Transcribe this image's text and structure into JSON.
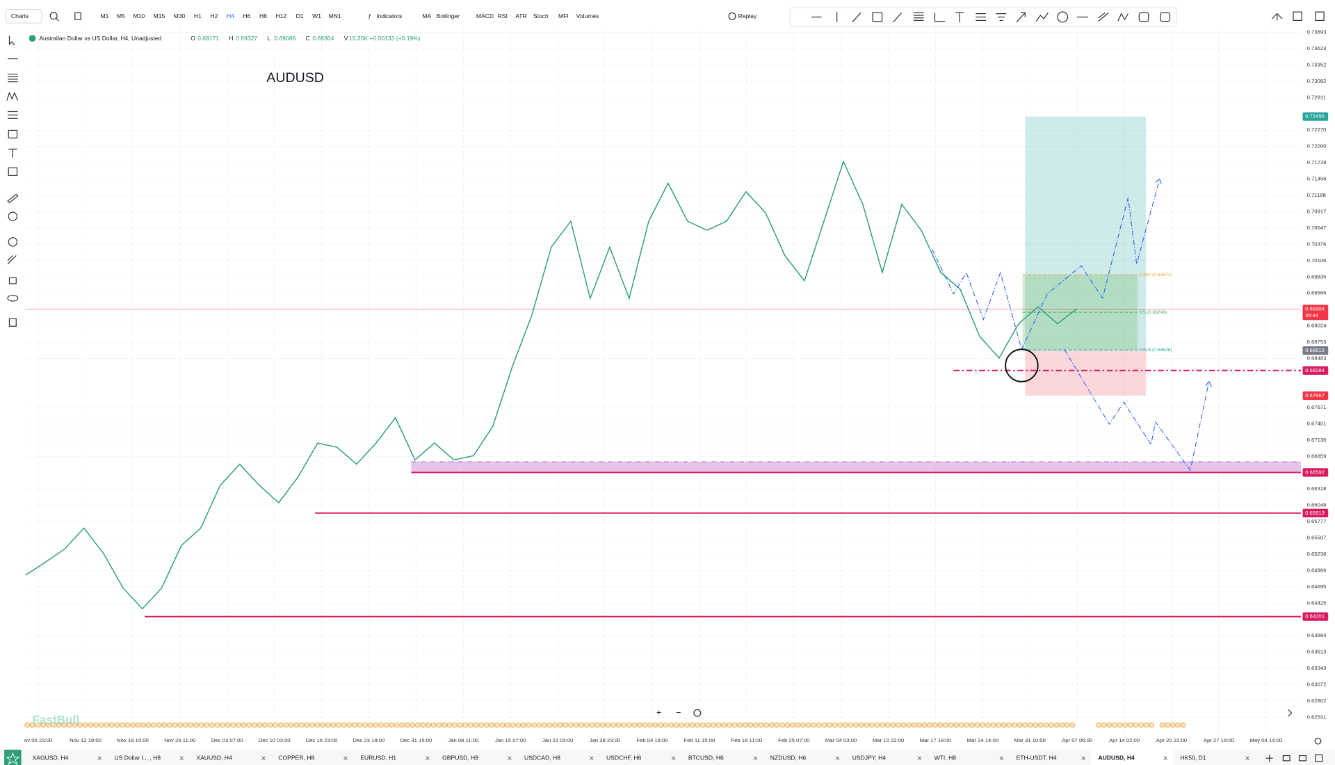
{
  "toolbar": {
    "menu": "Charts",
    "timeframes": [
      "M1",
      "M5",
      "M10",
      "M15",
      "M30",
      "H1",
      "H2",
      "H4",
      "H6",
      "H8",
      "H12",
      "D1",
      "W1",
      "MN1"
    ],
    "active_timeframe": 7,
    "indicators_label": "Indicators",
    "indicators": [
      "MA",
      "Bollinger",
      "MACD",
      "RSI",
      "ATR",
      "Stoch",
      "MFI",
      "Volumes"
    ],
    "replay": "Replay"
  },
  "chart_data": {
    "type": "line",
    "title": "Australian Dollar vs US Dollar, H4, Unadjusted",
    "watermark": "AUDUSD",
    "brand": "FastBull",
    "ohlc": [
      {
        "label": "O",
        "value": 0.69171
      },
      {
        "label": "H",
        "value": 0.69327
      },
      {
        "label": "L",
        "value": 0.69086
      },
      {
        "label": "C",
        "value": 0.69304
      }
    ],
    "volume": {
      "label": "V",
      "value": "15.25K"
    },
    "change": "+0.00133 (+0.19%)",
    "series": [
      {
        "name": "AUDUSD",
        "color": "#2e9e7a",
        "values": [
          0.6489,
          0.651,
          0.6532,
          0.6567,
          0.6525,
          0.6468,
          0.6433,
          0.6468,
          0.6538,
          0.6567,
          0.6638,
          0.6673,
          0.6638,
          0.6609,
          0.6652,
          0.6708,
          0.6701,
          0.6673,
          0.6708,
          0.675,
          0.668,
          0.6708,
          0.668,
          0.6687,
          0.6736,
          0.6835,
          0.692,
          0.7033,
          0.7076,
          0.6948,
          0.7033,
          0.6948,
          0.7076,
          0.7139,
          0.7076,
          0.7061,
          0.7076,
          0.7125,
          0.709,
          0.7019,
          0.6977,
          0.7076,
          0.7175,
          0.7104,
          0.6991,
          0.7104,
          0.7061,
          0.6991,
          0.6963,
          0.6885,
          0.6849,
          0.6906,
          0.6934,
          0.6906,
          0.6931
        ]
      }
    ],
    "ylim": [
      0.6225,
      0.74
    ],
    "yticks": [
      0.73893,
      0.73623,
      0.73352,
      0.73082,
      0.72811,
      {
        "value": 0.7227,
        "label": "0.72270"
      },
      {
        "value": 0.72,
        "label": "0.72000"
      },
      0.71729,
      0.71458,
      0.71188,
      0.70917,
      0.70647,
      0.70376,
      0.70106,
      0.69835,
      0.69565,
      0.69024,
      0.68753,
      0.68483,
      0.67671,
      0.67401,
      {
        "value": 0.6713,
        "label": "0.67130"
      },
      0.66859,
      0.66318,
      0.66048,
      0.65777,
      0.65507,
      0.65236,
      0.64966,
      0.64695,
      0.64425,
      0.63884,
      0.63613,
      0.63343,
      0.63072,
      0.62802,
      0.62531
    ],
    "time_axis_labels": [
      "ov 05 23:00",
      "Nov 12 19:00",
      "Nov 19 15:00",
      "Nov 26 11:00",
      "Dec 03 07:00",
      "Dec 10 03:00",
      "Dec 16 23:00",
      "Dec 23 19:00",
      "Dec 31 15:00",
      "Jan 08 11:00",
      "Jan 15 07:00",
      "Jan 22 03:00",
      "Jan 28 23:00",
      "Feb 04 19:00",
      "Feb 11 15:00",
      "Feb 18 11:00",
      "Feb 25 07:00",
      "Mar 04 03:00",
      "Mar 10 22:00",
      "Mar 17 18:00",
      "Mar 24 14:00",
      "Mar 31 10:00",
      "Apr 07 06:00",
      "Apr 14 02:00",
      "Apr 20 22:00",
      "Apr 27 18:00",
      "May 04 14:00"
    ],
    "grid": true,
    "current_price": {
      "value": 0.69304,
      "countdown": "39:44",
      "color": "#f23645"
    },
    "levels": [
      {
        "value": 0.68284,
        "color": "#d81b60",
        "style": "dashdot"
      },
      {
        "value": 0.66592,
        "color": "#d81b60",
        "style": "solid"
      },
      {
        "value": 0.65919,
        "color": "#d81b60",
        "style": "solid"
      },
      {
        "value": 0.64201,
        "color": "#d81b60",
        "style": "solid"
      }
    ],
    "zone": {
      "low": 0.66592,
      "high": 0.6677,
      "color": "#c77dd0"
    },
    "position": {
      "take_profit": 0.72496,
      "entry": 0.68615,
      "stop_loss": 0.67867
    },
    "fib_levels": [
      {
        "label": "0.382 (0.69871)",
        "value": 0.69871,
        "color": "#e6a23c"
      },
      {
        "label": "0.5 (0.69249)",
        "value": 0.69249,
        "color": "#4caf50"
      },
      {
        "label": "0.618 (0.68626)",
        "value": 0.68626,
        "color": "#26a69a"
      }
    ]
  },
  "tabs": {
    "items": [
      "XAGUSD, H4",
      "US Dollar I... , H8",
      "XAUUSD, H4",
      "COPPER, H8",
      "EURUSD, H1",
      "GBPUSD, H8",
      "USDCAD, H8",
      "USDCHF, H6",
      "BTCUSD, H6",
      "NZDUSD, H6",
      "USDJPY, H4",
      "WTI, H8",
      "ETH-USDT, H4",
      "AUDUSD, H4",
      "HK50, D1"
    ],
    "active": 13
  }
}
